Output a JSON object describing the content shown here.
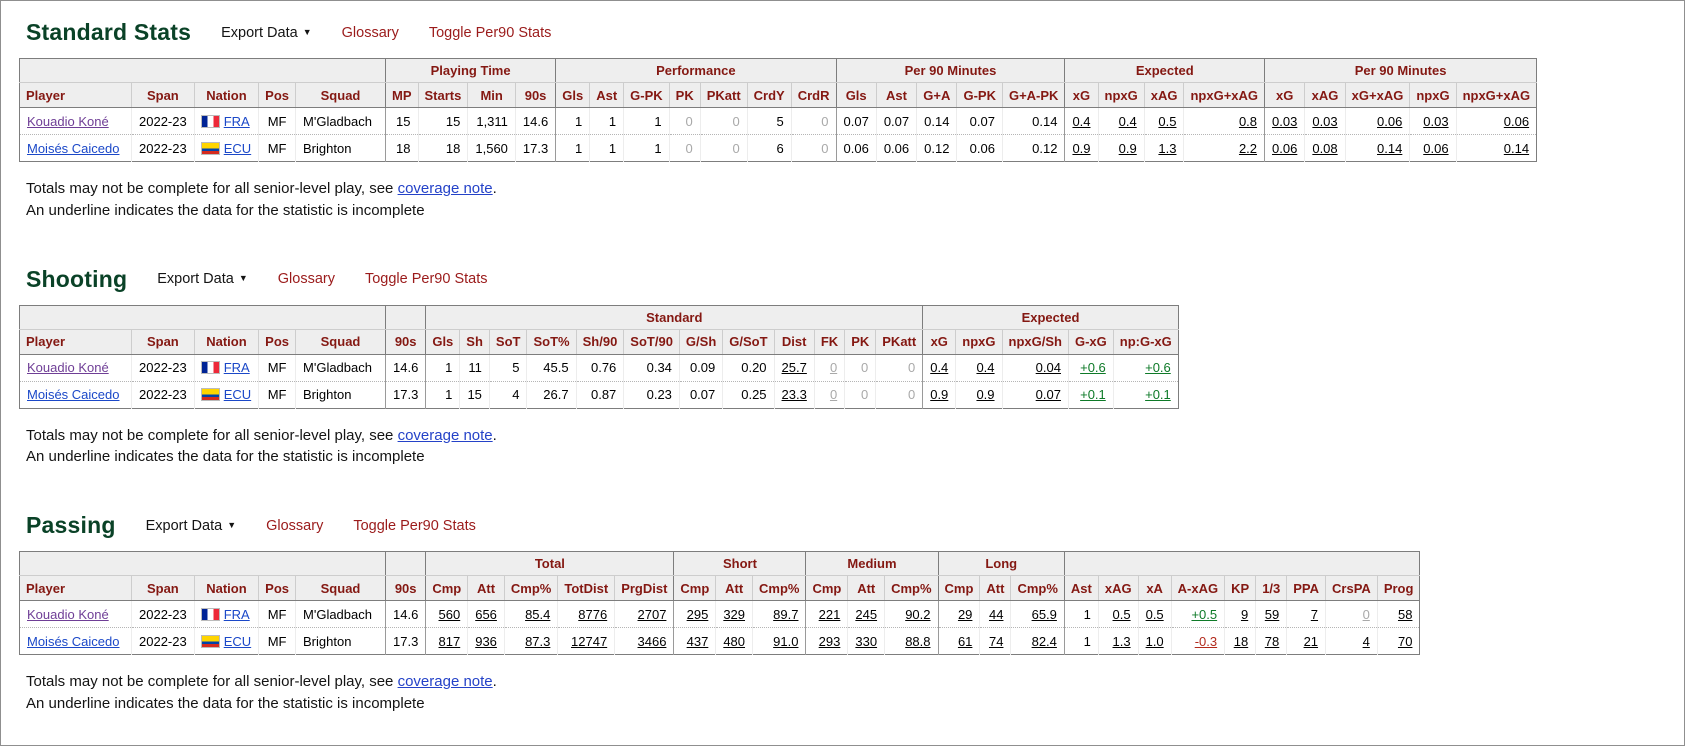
{
  "page": {
    "accent_green": "#0a4227",
    "link_maroon": "#9b1b1b",
    "link_blue": "#1b48c8",
    "visited_purple": "#6f3e96",
    "positive_green": "#0e7a28",
    "negative_red": "#b22a1c",
    "incomplete_gray": "#a9a9a9"
  },
  "controls": {
    "export_label": "Export Data",
    "export_arrow": "▼",
    "glossary_label": "Glossary",
    "toggle_label": "Toggle Per90 Stats"
  },
  "note": {
    "line1_prefix": "Totals may not be complete for all senior-level play, see ",
    "link": "coverage note",
    "line1_suffix": ".",
    "line2": "An underline indicates the data for the statistic is incomplete"
  },
  "sections": [
    {
      "title": "Standard Stats",
      "table": {
        "groups": [
          {
            "label": "",
            "span": 5
          },
          {
            "label": "Playing Time",
            "span": 4
          },
          {
            "label": "Performance",
            "span": 7
          },
          {
            "label": "Per 90 Minutes",
            "span": 5
          },
          {
            "label": "Expected",
            "span": 4
          },
          {
            "label": "Per 90 Minutes",
            "span": 5
          }
        ],
        "columns": [
          "Player",
          "Span",
          "Nation",
          "Pos",
          "Squad",
          "MP",
          "Starts",
          "Min",
          "90s",
          "Gls",
          "Ast",
          "G-PK",
          "PK",
          "PKatt",
          "CrdY",
          "CrdR",
          "Gls",
          "Ast",
          "G+A",
          "G-PK",
          "G+A-PK",
          "xG",
          "npxG",
          "xAG",
          "npxG+xAG",
          "xG",
          "xAG",
          "xG+xAG",
          "npxG",
          "npxG+xAG"
        ],
        "rows": [
          [
            [
              "Kouadio Koné",
              "player visited"
            ],
            [
              "2022-23",
              "span"
            ],
            [
              "FRA",
              "nation fra"
            ],
            [
              "MF",
              "pos"
            ],
            [
              "M'Gladbach",
              "squad"
            ],
            [
              "15",
              ""
            ],
            [
              "15",
              ""
            ],
            [
              "1,311",
              ""
            ],
            [
              "14.6",
              ""
            ],
            [
              "1",
              ""
            ],
            [
              "1",
              ""
            ],
            [
              "1",
              ""
            ],
            [
              "0",
              "gray"
            ],
            [
              "0",
              "gray"
            ],
            [
              "5",
              ""
            ],
            [
              "0",
              "gray"
            ],
            [
              "0.07",
              ""
            ],
            [
              "0.07",
              ""
            ],
            [
              "0.14",
              ""
            ],
            [
              "0.07",
              ""
            ],
            [
              "0.14",
              ""
            ],
            [
              "0.4",
              "u"
            ],
            [
              "0.4",
              "u"
            ],
            [
              "0.5",
              "u"
            ],
            [
              "0.8",
              "u"
            ],
            [
              "0.03",
              "u"
            ],
            [
              "0.03",
              "u"
            ],
            [
              "0.06",
              "u"
            ],
            [
              "0.03",
              "u"
            ],
            [
              "0.06",
              "u"
            ]
          ],
          [
            [
              "Moisés Caicedo",
              "player"
            ],
            [
              "2022-23",
              "span"
            ],
            [
              "ECU",
              "nation ecu"
            ],
            [
              "MF",
              "pos"
            ],
            [
              "Brighton",
              "squad"
            ],
            [
              "18",
              ""
            ],
            [
              "18",
              ""
            ],
            [
              "1,560",
              ""
            ],
            [
              "17.3",
              ""
            ],
            [
              "1",
              ""
            ],
            [
              "1",
              ""
            ],
            [
              "1",
              ""
            ],
            [
              "0",
              "gray"
            ],
            [
              "0",
              "gray"
            ],
            [
              "6",
              ""
            ],
            [
              "0",
              "gray"
            ],
            [
              "0.06",
              ""
            ],
            [
              "0.06",
              ""
            ],
            [
              "0.12",
              ""
            ],
            [
              "0.06",
              ""
            ],
            [
              "0.12",
              ""
            ],
            [
              "0.9",
              "u"
            ],
            [
              "0.9",
              "u"
            ],
            [
              "1.3",
              "u"
            ],
            [
              "2.2",
              "u"
            ],
            [
              "0.06",
              "u"
            ],
            [
              "0.08",
              "u"
            ],
            [
              "0.14",
              "u"
            ],
            [
              "0.06",
              "u"
            ],
            [
              "0.14",
              "u"
            ]
          ]
        ]
      }
    },
    {
      "title": "Shooting",
      "table": {
        "groups": [
          {
            "label": "",
            "span": 5
          },
          {
            "label": "",
            "span": 1
          },
          {
            "label": "Standard",
            "span": 12
          },
          {
            "label": "Expected",
            "span": 5
          }
        ],
        "columns": [
          "Player",
          "Span",
          "Nation",
          "Pos",
          "Squad",
          "90s",
          "Gls",
          "Sh",
          "SoT",
          "SoT%",
          "Sh/90",
          "SoT/90",
          "G/Sh",
          "G/SoT",
          "Dist",
          "FK",
          "PK",
          "PKatt",
          "xG",
          "npxG",
          "npxG/Sh",
          "G-xG",
          "np:G-xG"
        ],
        "rows": [
          [
            [
              "Kouadio Koné",
              "player visited"
            ],
            [
              "2022-23",
              "span"
            ],
            [
              "FRA",
              "nation fra"
            ],
            [
              "MF",
              "pos"
            ],
            [
              "M'Gladbach",
              "squad"
            ],
            [
              "14.6",
              ""
            ],
            [
              "1",
              ""
            ],
            [
              "11",
              ""
            ],
            [
              "5",
              ""
            ],
            [
              "45.5",
              ""
            ],
            [
              "0.76",
              ""
            ],
            [
              "0.34",
              ""
            ],
            [
              "0.09",
              ""
            ],
            [
              "0.20",
              ""
            ],
            [
              "25.7",
              "u"
            ],
            [
              "0",
              "gray u"
            ],
            [
              "0",
              "gray"
            ],
            [
              "0",
              "gray"
            ],
            [
              "0.4",
              "u"
            ],
            [
              "0.4",
              "u"
            ],
            [
              "0.04",
              "u"
            ],
            [
              "+0.6",
              "u green"
            ],
            [
              "+0.6",
              "u green"
            ]
          ],
          [
            [
              "Moisés Caicedo",
              "player"
            ],
            [
              "2022-23",
              "span"
            ],
            [
              "ECU",
              "nation ecu"
            ],
            [
              "MF",
              "pos"
            ],
            [
              "Brighton",
              "squad"
            ],
            [
              "17.3",
              ""
            ],
            [
              "1",
              ""
            ],
            [
              "15",
              ""
            ],
            [
              "4",
              ""
            ],
            [
              "26.7",
              ""
            ],
            [
              "0.87",
              ""
            ],
            [
              "0.23",
              ""
            ],
            [
              "0.07",
              ""
            ],
            [
              "0.25",
              ""
            ],
            [
              "23.3",
              "u"
            ],
            [
              "0",
              "gray u"
            ],
            [
              "0",
              "gray"
            ],
            [
              "0",
              "gray"
            ],
            [
              "0.9",
              "u"
            ],
            [
              "0.9",
              "u"
            ],
            [
              "0.07",
              "u"
            ],
            [
              "+0.1",
              "u green"
            ],
            [
              "+0.1",
              "u green"
            ]
          ]
        ]
      }
    },
    {
      "title": "Passing",
      "table": {
        "groups": [
          {
            "label": "",
            "span": 5
          },
          {
            "label": "",
            "span": 1
          },
          {
            "label": "Total",
            "span": 5
          },
          {
            "label": "Short",
            "span": 3
          },
          {
            "label": "Medium",
            "span": 3
          },
          {
            "label": "Long",
            "span": 3
          },
          {
            "label": "",
            "span": 9
          }
        ],
        "columns": [
          "Player",
          "Span",
          "Nation",
          "Pos",
          "Squad",
          "90s",
          "Cmp",
          "Att",
          "Cmp%",
          "TotDist",
          "PrgDist",
          "Cmp",
          "Att",
          "Cmp%",
          "Cmp",
          "Att",
          "Cmp%",
          "Cmp",
          "Att",
          "Cmp%",
          "Ast",
          "xAG",
          "xA",
          "A-xAG",
          "KP",
          "1/3",
          "PPA",
          "CrsPA",
          "Prog"
        ],
        "rows": [
          [
            [
              "Kouadio Koné",
              "player visited"
            ],
            [
              "2022-23",
              "span"
            ],
            [
              "FRA",
              "nation fra"
            ],
            [
              "MF",
              "pos"
            ],
            [
              "M'Gladbach",
              "squad"
            ],
            [
              "14.6",
              ""
            ],
            [
              "560",
              "u"
            ],
            [
              "656",
              "u"
            ],
            [
              "85.4",
              "u"
            ],
            [
              "8776",
              "u"
            ],
            [
              "2707",
              "u"
            ],
            [
              "295",
              "u"
            ],
            [
              "329",
              "u"
            ],
            [
              "89.7",
              "u"
            ],
            [
              "221",
              "u"
            ],
            [
              "245",
              "u"
            ],
            [
              "90.2",
              "u"
            ],
            [
              "29",
              "u"
            ],
            [
              "44",
              "u"
            ],
            [
              "65.9",
              "u"
            ],
            [
              "1",
              ""
            ],
            [
              "0.5",
              "u"
            ],
            [
              "0.5",
              "u"
            ],
            [
              "+0.5",
              "u green"
            ],
            [
              "9",
              "u"
            ],
            [
              "59",
              "u"
            ],
            [
              "7",
              "u"
            ],
            [
              "0",
              "gray u"
            ],
            [
              "58",
              "u"
            ]
          ],
          [
            [
              "Moisés Caicedo",
              "player"
            ],
            [
              "2022-23",
              "span"
            ],
            [
              "ECU",
              "nation ecu"
            ],
            [
              "MF",
              "pos"
            ],
            [
              "Brighton",
              "squad"
            ],
            [
              "17.3",
              ""
            ],
            [
              "817",
              "u"
            ],
            [
              "936",
              "u"
            ],
            [
              "87.3",
              "u"
            ],
            [
              "12747",
              "u"
            ],
            [
              "3466",
              "u"
            ],
            [
              "437",
              "u"
            ],
            [
              "480",
              "u"
            ],
            [
              "91.0",
              "u"
            ],
            [
              "293",
              "u"
            ],
            [
              "330",
              "u"
            ],
            [
              "88.8",
              "u"
            ],
            [
              "61",
              "u"
            ],
            [
              "74",
              "u"
            ],
            [
              "82.4",
              "u"
            ],
            [
              "1",
              ""
            ],
            [
              "1.3",
              "u"
            ],
            [
              "1.0",
              "u"
            ],
            [
              "-0.3",
              "u red"
            ],
            [
              "18",
              "u"
            ],
            [
              "78",
              "u"
            ],
            [
              "21",
              "u"
            ],
            [
              "4",
              "u"
            ],
            [
              "70",
              "u"
            ]
          ]
        ]
      }
    }
  ]
}
